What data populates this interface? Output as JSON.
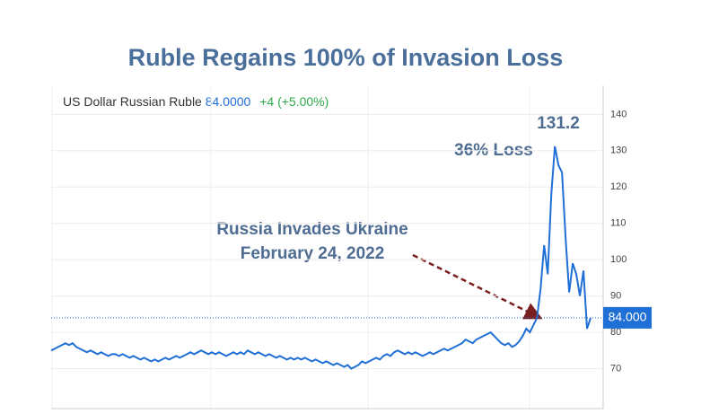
{
  "chart_data": {
    "type": "line",
    "title": "Ruble Regains 100% of Invasion Loss",
    "series": [
      {
        "name": "US Dollar Russian Ruble",
        "color": "#1f6fd6",
        "values": [
          75,
          75.5,
          76,
          76.5,
          77,
          76.5,
          77,
          76,
          75.5,
          75,
          74.5,
          75,
          74.5,
          74,
          74.5,
          74,
          73.5,
          74,
          74,
          73.5,
          74,
          73.5,
          73,
          73.5,
          73,
          72.5,
          73,
          72.5,
          72,
          72.5,
          72,
          72.5,
          73,
          72.5,
          73,
          73.5,
          73,
          73.5,
          74,
          74.5,
          74,
          74.5,
          75,
          74.5,
          74,
          74.5,
          74,
          74.5,
          74,
          73.5,
          74,
          74.5,
          74,
          74.5,
          74,
          75,
          74.5,
          74,
          74.5,
          74,
          73.5,
          74,
          73.5,
          73,
          73.5,
          73,
          72.5,
          73,
          72.5,
          73,
          72.5,
          73,
          72.5,
          72,
          72.5,
          72,
          71.5,
          72,
          71.5,
          71,
          71.5,
          71,
          70.5,
          71,
          70,
          70.5,
          71,
          72,
          71.5,
          72,
          72.5,
          73,
          72.5,
          73.5,
          74,
          73.5,
          74.5,
          75,
          74.5,
          74,
          74.5,
          74,
          74.5,
          74,
          73.5,
          74,
          74.5,
          74,
          74.5,
          75,
          75.5,
          75,
          75.5,
          76,
          76.5,
          77,
          78,
          77.5,
          77,
          78,
          78.5,
          79,
          79.5,
          80,
          79,
          78,
          77,
          76.5,
          77,
          76,
          76.5,
          77.5,
          79,
          81,
          80,
          82,
          84,
          92,
          104,
          96,
          118,
          131.2,
          126,
          124,
          106,
          91,
          99,
          96,
          90,
          97,
          81,
          84
        ]
      }
    ],
    "header_value": {
      "value": 84,
      "label": "84.0000"
    },
    "header_change": "+4 (+5.00%)",
    "last_value_label": {
      "value": 84,
      "label": "84.000"
    },
    "annotations": [
      "131.2",
      "36% Loss",
      "Russia Invades Ukraine",
      "February 24, 2022"
    ],
    "ylim": [
      59,
      148
    ],
    "yticks": [
      70,
      80,
      90,
      100,
      110,
      120,
      130,
      140
    ],
    "grid": true
  }
}
